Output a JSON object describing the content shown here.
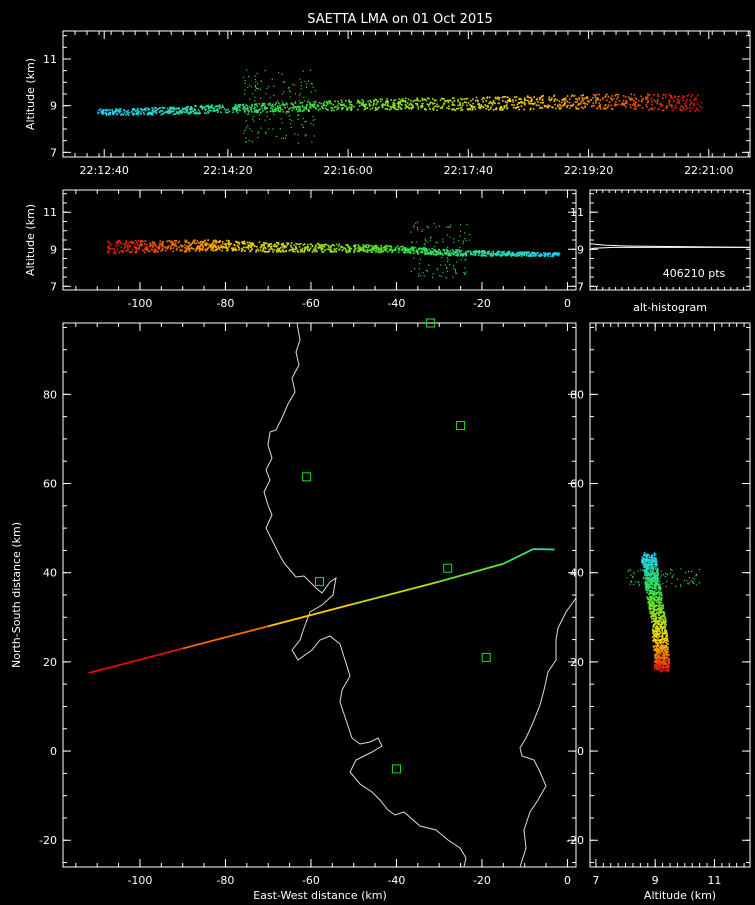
{
  "title": "SAETTA LMA on 01 Oct 2015",
  "chart_data": [
    {
      "id": "time-altitude",
      "type": "scatter",
      "ylabel": "Altitude (km)",
      "xlabel": "",
      "x_ticks": [
        "22:12:40",
        "22:14:20",
        "22:16:00",
        "22:17:40",
        "22:19:20",
        "22:21:00"
      ],
      "y_ticks": [
        7,
        9,
        11
      ],
      "ylim": [
        6.8,
        12.2
      ],
      "series": [
        {
          "x_min": "22:11:25",
          "x_max": "22:20:45",
          "points": [
            [
              0,
              8.75
            ],
            [
              0.1,
              8.8
            ],
            [
              0.2,
              8.9
            ],
            [
              0.3,
              8.95
            ],
            [
              0.4,
              9.05
            ],
            [
              0.5,
              9.1
            ],
            [
              0.6,
              9.1
            ],
            [
              0.7,
              9.15
            ],
            [
              0.8,
              9.2
            ],
            [
              0.9,
              9.2
            ],
            [
              1.0,
              9.15
            ]
          ]
        }
      ],
      "color_scale": "time: blue (early) to red (late)"
    },
    {
      "id": "ew-altitude",
      "type": "scatter",
      "ylabel": "Altitude (km)",
      "x_ticks": [
        -100,
        -80,
        -60,
        -40,
        -20,
        0
      ],
      "xlim": [
        -118,
        2
      ],
      "y_ticks": [
        7,
        9,
        11
      ],
      "ylim": [
        6.8,
        12.2
      ],
      "series": [
        {
          "points": [
            [
              -108,
              9.15
            ],
            [
              -95,
              9.2
            ],
            [
              -82,
              9.25
            ],
            [
              -70,
              9.15
            ],
            [
              -55,
              9.1
            ],
            [
              -40,
              9.05
            ],
            [
              -28,
              8.85
            ],
            [
              -15,
              8.8
            ],
            [
              -2,
              8.75
            ]
          ]
        }
      ]
    },
    {
      "id": "alt-histogram",
      "type": "line",
      "xlabel": "alt-histogram",
      "annotation": "406210 pts",
      "y_ticks": [
        7,
        9,
        11
      ],
      "ylim": [
        6.8,
        12.2
      ],
      "series": [
        {
          "points": [
            [
              0,
              9.0
            ],
            [
              0.02,
              9.05
            ],
            [
              0.15,
              9.1
            ],
            [
              1,
              9.1
            ]
          ]
        },
        {
          "points": [
            [
              0,
              9.3
            ],
            [
              0.1,
              9.22
            ],
            [
              0.25,
              9.17
            ],
            [
              1,
              9.1
            ]
          ]
        }
      ]
    },
    {
      "id": "plan-view",
      "type": "scatter",
      "xlabel": "East-West distance (km)",
      "ylabel": "North-South distance (km)",
      "x_ticks": [
        -100,
        -80,
        -60,
        -40,
        -20,
        0
      ],
      "xlim": [
        -118,
        2
      ],
      "y_ticks": [
        -20,
        0,
        20,
        40,
        60,
        80
      ],
      "ylim": [
        -26,
        96
      ],
      "flash_track": [
        [
          -112,
          17.5
        ],
        [
          -90,
          23
        ],
        [
          -70,
          28
        ],
        [
          -50,
          33
        ],
        [
          -30,
          38
        ],
        [
          -15,
          42
        ],
        [
          -8,
          45.3
        ],
        [
          -3,
          45.2
        ]
      ],
      "stations": [
        [
          -32,
          96
        ],
        [
          -25,
          73
        ],
        [
          -61,
          61.5
        ],
        [
          -58,
          38
        ],
        [
          -28,
          41
        ],
        [
          -19,
          21
        ],
        [
          -40,
          -4
        ]
      ]
    },
    {
      "id": "altitude-ns",
      "type": "scatter",
      "xlabel": "Altitude (km)",
      "x_ticks": [
        7,
        9,
        11
      ],
      "xlim": [
        6.8,
        12.2
      ],
      "y_ticks": [
        -20,
        0,
        20,
        40,
        60,
        80
      ],
      "ylim": [
        -26,
        96
      ],
      "series": [
        {
          "points": [
            [
              8.75,
              44
            ],
            [
              8.8,
              41
            ],
            [
              8.9,
              37
            ],
            [
              9.0,
              33
            ],
            [
              9.1,
              29
            ],
            [
              9.15,
              25
            ],
            [
              9.2,
              21
            ],
            [
              9.2,
              18.5
            ]
          ]
        }
      ]
    }
  ]
}
